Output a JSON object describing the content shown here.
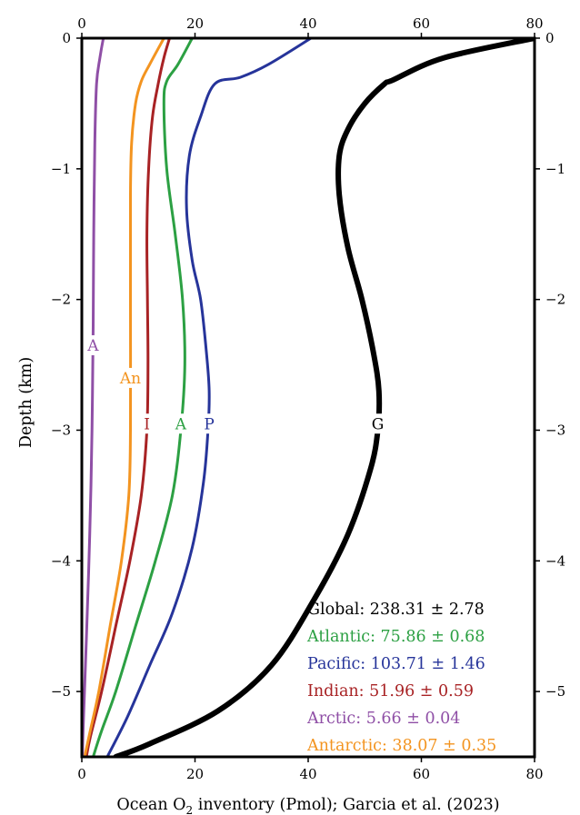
{
  "chart_data": {
    "type": "line",
    "xlabel_main": "Ocean O",
    "xlabel_sub": "2",
    "xlabel_rest": " inventory (Pmol); Garcia et al. (2023)",
    "ylabel": "Depth (km)",
    "xlim": [
      0,
      80
    ],
    "ylim": [
      -5.5,
      0
    ],
    "x_ticks": [
      0,
      20,
      40,
      60,
      80
    ],
    "x_tick_labels": [
      "0",
      "20",
      "40",
      "60",
      "80"
    ],
    "y_ticks": [
      0,
      -1,
      -2,
      -3,
      -4,
      -5
    ],
    "y_tick_labels": [
      "0",
      "−1",
      "−2",
      "−3",
      "−4",
      "−5"
    ],
    "grid": false,
    "legend_placement": "bottom-right",
    "series": [
      {
        "name": "Global",
        "label": "G",
        "label_x": 52.3,
        "label_y": -2.95,
        "color": "#000000",
        "width": 6,
        "points": [
          [
            80,
            0
          ],
          [
            64,
            -0.15
          ],
          [
            55,
            -0.32
          ],
          [
            53.5,
            -0.35
          ],
          [
            50,
            -0.5
          ],
          [
            47,
            -0.7
          ],
          [
            45.5,
            -0.9
          ],
          [
            45.5,
            -1.2
          ],
          [
            47,
            -1.6
          ],
          [
            49.5,
            -2.0
          ],
          [
            51.5,
            -2.4
          ],
          [
            52.5,
            -2.7
          ],
          [
            52.3,
            -3.0
          ],
          [
            51,
            -3.3
          ],
          [
            47,
            -3.8
          ],
          [
            41,
            -4.3
          ],
          [
            33.5,
            -4.8
          ],
          [
            24,
            -5.15
          ],
          [
            12,
            -5.4
          ],
          [
            6,
            -5.5
          ]
        ]
      },
      {
        "name": "Pacific",
        "label": "P",
        "label_x": 22.5,
        "label_y": -2.95,
        "color": "#26349a",
        "width": 3,
        "points": [
          [
            40.5,
            0
          ],
          [
            33,
            -0.2
          ],
          [
            28,
            -0.3
          ],
          [
            23.5,
            -0.35
          ],
          [
            21,
            -0.6
          ],
          [
            19,
            -0.9
          ],
          [
            18.5,
            -1.3
          ],
          [
            19.5,
            -1.7
          ],
          [
            21,
            -2.0
          ],
          [
            22,
            -2.4
          ],
          [
            22.5,
            -2.7
          ],
          [
            22.3,
            -3.0
          ],
          [
            21.5,
            -3.4
          ],
          [
            19.5,
            -3.9
          ],
          [
            16,
            -4.4
          ],
          [
            12,
            -4.8
          ],
          [
            8,
            -5.2
          ],
          [
            4.5,
            -5.5
          ]
        ]
      },
      {
        "name": "Atlantic",
        "label": "A",
        "label_x": 17.5,
        "label_y": -2.95,
        "color": "#2ca043",
        "width": 3,
        "points": [
          [
            19.5,
            0
          ],
          [
            17,
            -0.2
          ],
          [
            15,
            -0.33
          ],
          [
            14.5,
            -0.5
          ],
          [
            15,
            -1.0
          ],
          [
            16.5,
            -1.5
          ],
          [
            17.8,
            -2.0
          ],
          [
            18.2,
            -2.5
          ],
          [
            17.5,
            -3.0
          ],
          [
            16,
            -3.5
          ],
          [
            13,
            -4.0
          ],
          [
            9.5,
            -4.5
          ],
          [
            6,
            -5.0
          ],
          [
            3.5,
            -5.3
          ],
          [
            2,
            -5.5
          ]
        ]
      },
      {
        "name": "Indian",
        "label": "I",
        "label_x": 11.5,
        "label_y": -2.95,
        "color": "#a82224",
        "width": 3,
        "points": [
          [
            15.5,
            0
          ],
          [
            14.5,
            -0.15
          ],
          [
            13.5,
            -0.35
          ],
          [
            12.5,
            -0.6
          ],
          [
            11.8,
            -1.0
          ],
          [
            11.5,
            -1.5
          ],
          [
            11.6,
            -2.0
          ],
          [
            11.7,
            -2.5
          ],
          [
            11.5,
            -3.0
          ],
          [
            10.5,
            -3.5
          ],
          [
            8.5,
            -4.0
          ],
          [
            6,
            -4.5
          ],
          [
            3.5,
            -5.0
          ],
          [
            1.5,
            -5.35
          ],
          [
            0.8,
            -5.5
          ]
        ]
      },
      {
        "name": "Antarctic",
        "label": "An",
        "label_x": 8.6,
        "label_y": -2.6,
        "color": "#f39420",
        "width": 3,
        "points": [
          [
            14.5,
            0
          ],
          [
            12,
            -0.2
          ],
          [
            10.5,
            -0.33
          ],
          [
            9.5,
            -0.5
          ],
          [
            8.8,
            -0.8
          ],
          [
            8.6,
            -1.2
          ],
          [
            8.6,
            -2.0
          ],
          [
            8.6,
            -3.0
          ],
          [
            8.3,
            -3.5
          ],
          [
            7,
            -4.0
          ],
          [
            5,
            -4.5
          ],
          [
            3,
            -5.0
          ],
          [
            1.5,
            -5.3
          ],
          [
            0.5,
            -5.5
          ]
        ]
      },
      {
        "name": "Arctic",
        "label": "A",
        "label_x": 2,
        "label_y": -2.35,
        "color": "#8f4fa6",
        "width": 3,
        "points": [
          [
            3.8,
            0
          ],
          [
            3.2,
            -0.15
          ],
          [
            2.6,
            -0.35
          ],
          [
            2.3,
            -0.8
          ],
          [
            2.1,
            -1.5
          ],
          [
            2,
            -2.2
          ],
          [
            1.8,
            -3.0
          ],
          [
            1.4,
            -3.8
          ],
          [
            0.8,
            -4.6
          ],
          [
            0.3,
            -5.2
          ],
          [
            0.1,
            -5.5
          ]
        ]
      }
    ],
    "legend": [
      {
        "text": "Global: 238.31 ± 2.78",
        "color": "#000000"
      },
      {
        "text": "Atlantic: 75.86 ± 0.68",
        "color": "#2ca043"
      },
      {
        "text": "Pacific: 103.71 ± 1.46",
        "color": "#26349a"
      },
      {
        "text": "Indian: 51.96 ± 0.59",
        "color": "#a82224"
      },
      {
        "text": "Arctic: 5.66 ± 0.04",
        "color": "#8f4fa6"
      },
      {
        "text": "Antarctic: 38.07 ± 0.35",
        "color": "#f39420"
      }
    ]
  }
}
